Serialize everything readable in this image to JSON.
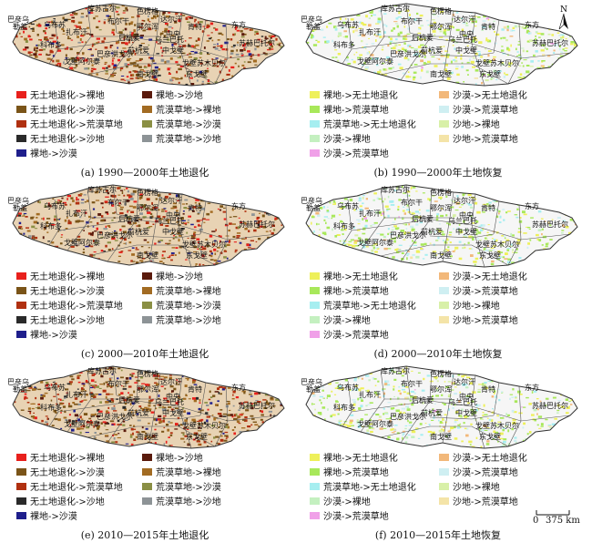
{
  "north_label": "N",
  "scale_label": "375 km",
  "scale_zero": "0",
  "colors": {
    "outline": "#333333",
    "degrade_base": "#e8d3b4",
    "restore_base": "#f6f6f6"
  },
  "aimags": [
    "巴彦乌",
    "库苏古尔",
    "色楞格",
    "乌布苏",
    "布尔干",
    "达尔汗",
    "扎布汗",
    "鄂尔浑",
    "肯特",
    "中央",
    "东方",
    "后杭爱",
    "乌兰巴托",
    "科布多",
    "苏赫巴托尔",
    "前杭爱",
    "巴彦洪戈尔",
    "中戈壁",
    "戈壁苏木贝尔",
    "南戈壁",
    "东戈壁",
    "戈壁阿尔泰",
    "勒盖"
  ],
  "degrade_legend": [
    {
      "label": "无土地退化->裸地",
      "color": "#e8201c"
    },
    {
      "label": "裸地->沙地",
      "color": "#5a1a0c"
    },
    {
      "label": "无土地退化->沙漠",
      "color": "#7a5418"
    },
    {
      "label": "荒漠草地->裸地",
      "color": "#a26b22"
    },
    {
      "label": "无土地退化->荒漠草地",
      "color": "#b03010"
    },
    {
      "label": "荒漠草地->沙漠",
      "color": "#8a8f44"
    },
    {
      "label": "无土地退化->沙地",
      "color": "#2a2a2a"
    },
    {
      "label": "荒漠草地->沙地",
      "color": "#8d9396"
    },
    {
      "label": "裸地->沙漠",
      "color": "#1f1f8c"
    }
  ],
  "restore_legend": [
    {
      "label": "裸地->无土地退化",
      "color": "#eef05a"
    },
    {
      "label": "沙漠->无土地退化",
      "color": "#f2b87a"
    },
    {
      "label": "裸地->荒漠草地",
      "color": "#a8e85a"
    },
    {
      "label": "沙漠->荒漠草地",
      "color": "#cfeff2"
    },
    {
      "label": "荒漠草地->无土地退化",
      "color": "#a6eef0"
    },
    {
      "label": "沙地->裸地",
      "color": "#d8f0a8"
    },
    {
      "label": "沙漠->裸地",
      "color": "#c4f0c0"
    },
    {
      "label": "沙地->荒漠草地",
      "color": "#f4e4a8"
    },
    {
      "label": "沙漠->荒漠草地",
      "color": "#f0a0e8"
    }
  ],
  "panels": [
    {
      "id": "a",
      "kind": "degrade",
      "caption": "(a) 1990—2000年土地退化"
    },
    {
      "id": "b",
      "kind": "restore",
      "caption": "(b) 1990—2000年土地恢复"
    },
    {
      "id": "c",
      "kind": "degrade",
      "caption": "(c) 2000—2010年土地退化"
    },
    {
      "id": "d",
      "kind": "restore",
      "caption": "(d) 2000—2010年土地恢复"
    },
    {
      "id": "e",
      "kind": "degrade",
      "caption": "(e) 2010—2015年土地退化"
    },
    {
      "id": "f",
      "kind": "restore",
      "caption": "(f) 2010—2015年土地恢复"
    }
  ]
}
